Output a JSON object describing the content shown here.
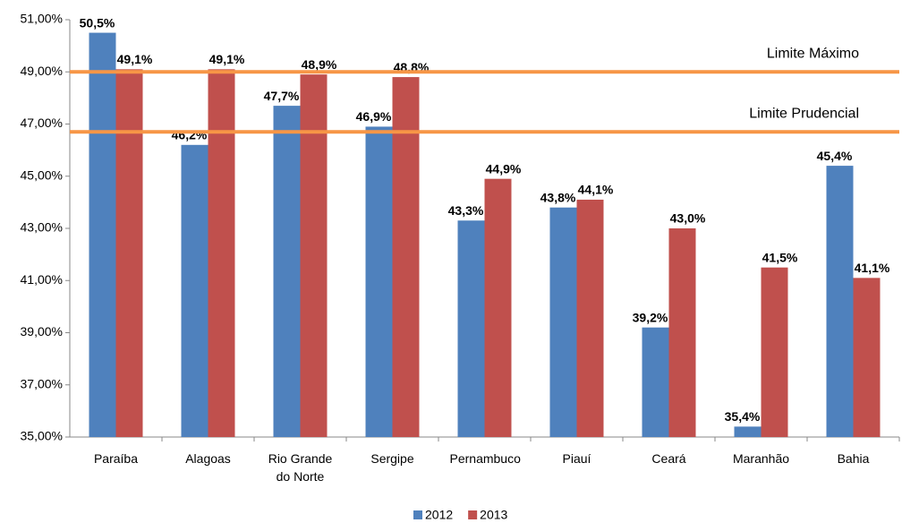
{
  "chart_data": {
    "type": "bar",
    "categories": [
      "Paraíba",
      "Alagoas",
      "Rio Grande do Norte",
      "Sergipe",
      "Pernambuco",
      "Piauí",
      "Ceará",
      "Maranhão",
      "Bahia"
    ],
    "series": [
      {
        "name": "2012",
        "color": "#4f81bd",
        "values": [
          50.5,
          46.2,
          47.7,
          46.9,
          43.3,
          43.8,
          39.2,
          35.4,
          45.4
        ],
        "value_labels": [
          "50,5%",
          "46,2%",
          "47,7%",
          "46,9%",
          "43,3%",
          "43,8%",
          "39,2%",
          "35,4%",
          "45,4%"
        ]
      },
      {
        "name": "2013",
        "color": "#c0504d",
        "values": [
          49.1,
          49.1,
          48.9,
          48.8,
          44.9,
          44.1,
          43.0,
          41.5,
          41.1
        ],
        "value_labels": [
          "49,1%",
          "49,1%",
          "48,9%",
          "48,8%",
          "44,9%",
          "44,1%",
          "43,0%",
          "41,5%",
          "41,1%"
        ]
      }
    ],
    "reference_lines": [
      {
        "label": "Limite Máximo",
        "value": 49.0,
        "color": "#f79646"
      },
      {
        "label": "Limite Prudencial",
        "value": 46.7,
        "color": "#f79646"
      }
    ],
    "ylim": [
      35,
      51
    ],
    "yticks": [
      {
        "value": 35,
        "label": "35,00%"
      },
      {
        "value": 37,
        "label": "37,00%"
      },
      {
        "value": 39,
        "label": "39,00%"
      },
      {
        "value": 41,
        "label": "41,00%"
      },
      {
        "value": 43,
        "label": "43,00%"
      },
      {
        "value": 45,
        "label": "45,00%"
      },
      {
        "value": 47,
        "label": "47,00%"
      },
      {
        "value": 49,
        "label": "49,00%"
      },
      {
        "value": 51,
        "label": "51,00%"
      }
    ],
    "legend": "bottom"
  }
}
